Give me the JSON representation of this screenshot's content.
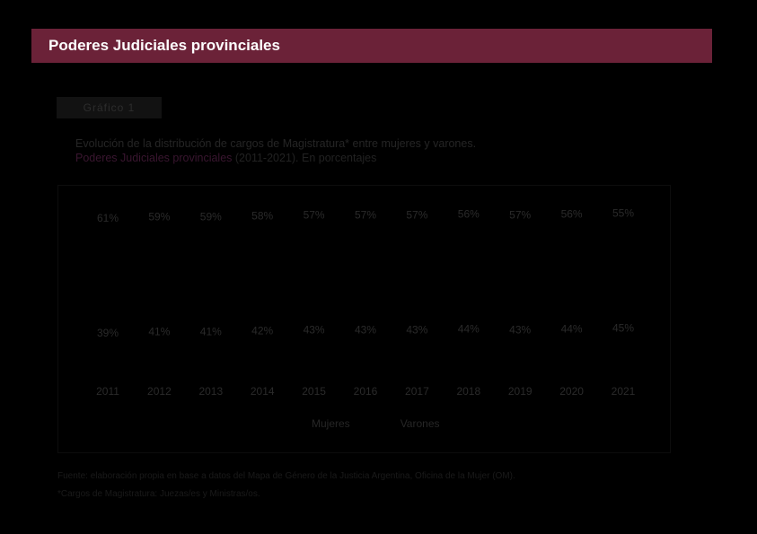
{
  "header": {
    "title": "Poderes Judiciales provinciales"
  },
  "chart_label": "Gráfico 1",
  "subtitle": {
    "line1": "Evolución de la distribución de cargos de Magistratura* entre mujeres y varones.",
    "line2_prefix": "Poderes Judiciales provinciales",
    "line2_suffix": " (2011-2021). En porcentajes"
  },
  "source": {
    "line1": "Fuente: elaboración propia en base a datos del Mapa de Género de la Justicia Argentina, Oficina de la Mujer (OM).",
    "line2": "*Cargos de Magistratura: Juezas/es y Ministras/os."
  },
  "colors": {
    "banner": "#6b2238",
    "label_text": "#2a2a2a"
  },
  "chart_data": {
    "type": "bar",
    "stacked": true,
    "categories": [
      "2011",
      "2012",
      "2013",
      "2014",
      "2015",
      "2016",
      "2017",
      "2018",
      "2019",
      "2020",
      "2021"
    ],
    "series": [
      {
        "name": "Mujeres",
        "values": [
          61,
          59,
          59,
          58,
          57,
          57,
          57,
          56,
          57,
          56,
          55
        ],
        "labels": [
          "61%",
          "59%",
          "59%",
          "58%",
          "57%",
          "57%",
          "57%",
          "56%",
          "57%",
          "56%",
          "55%"
        ]
      },
      {
        "name": "Varones",
        "values": [
          39,
          41,
          41,
          42,
          43,
          43,
          43,
          44,
          43,
          44,
          45
        ],
        "labels": [
          "39%",
          "41%",
          "41%",
          "42%",
          "43%",
          "43%",
          "43%",
          "44%",
          "43%",
          "44%",
          "45%"
        ]
      }
    ],
    "legend_position": "bottom",
    "grid": false,
    "ylim": [
      0,
      100
    ]
  }
}
